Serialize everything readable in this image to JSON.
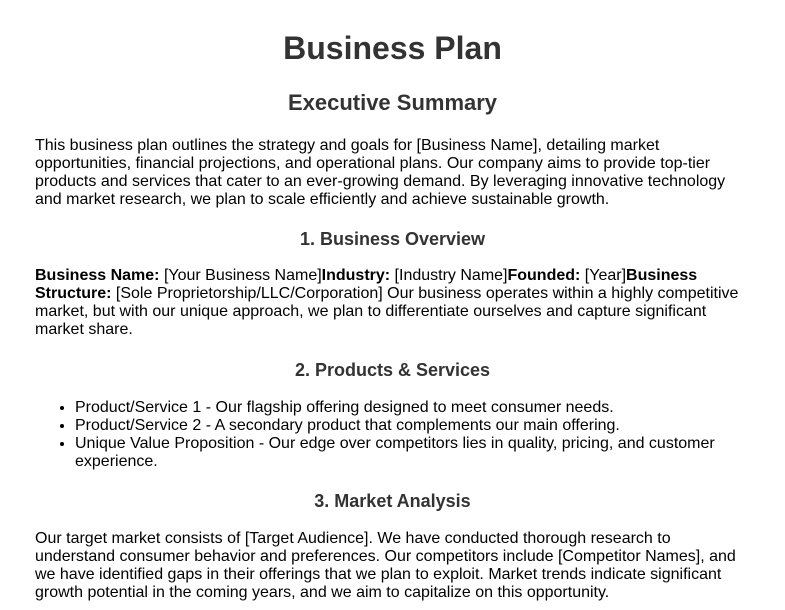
{
  "title": "Business Plan",
  "executive_summary": {
    "heading": "Executive Summary",
    "text": "This business plan outlines the strategy and goals for [Business Name], detailing market opportunities, financial projections, and operational plans. Our company aims to provide top-tier products and services that cater to an ever-growing demand. By leveraging innovative technology and market research, we plan to scale efficiently and achieve sustainable growth."
  },
  "business_overview": {
    "heading": "1. Business Overview",
    "name_label": "Business Name:",
    "name_value": " [Your Business Name]",
    "industry_label": "Industry:",
    "industry_value": " [Industry Name]",
    "founded_label": "Founded:",
    "founded_value": " [Year]",
    "structure_label": "Business Structure:",
    "structure_value": " [Sole Proprietorship/LLC/Corporation]",
    "text": " Our business operates within a highly competitive market, but with our unique approach, we plan to differentiate ourselves and capture significant market share."
  },
  "products_services": {
    "heading": "2. Products & Services",
    "items": [
      "Product/Service 1 - Our flagship offering designed to meet consumer needs.",
      "Product/Service 2 - A secondary product that complements our main offering.",
      "Unique Value Proposition - Our edge over competitors lies in quality, pricing, and customer experience."
    ]
  },
  "market_analysis": {
    "heading": "3. Market Analysis",
    "text": "Our target market consists of [Target Audience]. We have conducted thorough research to understand consumer behavior and preferences. Our competitors include [Competitor Names], and we have identified gaps in their offerings that we plan to exploit. Market trends indicate significant growth potential in the coming years, and we aim to capitalize on this opportunity."
  },
  "colors": {
    "heading": "#333333",
    "body_text": "#000000",
    "background": "#ffffff"
  }
}
